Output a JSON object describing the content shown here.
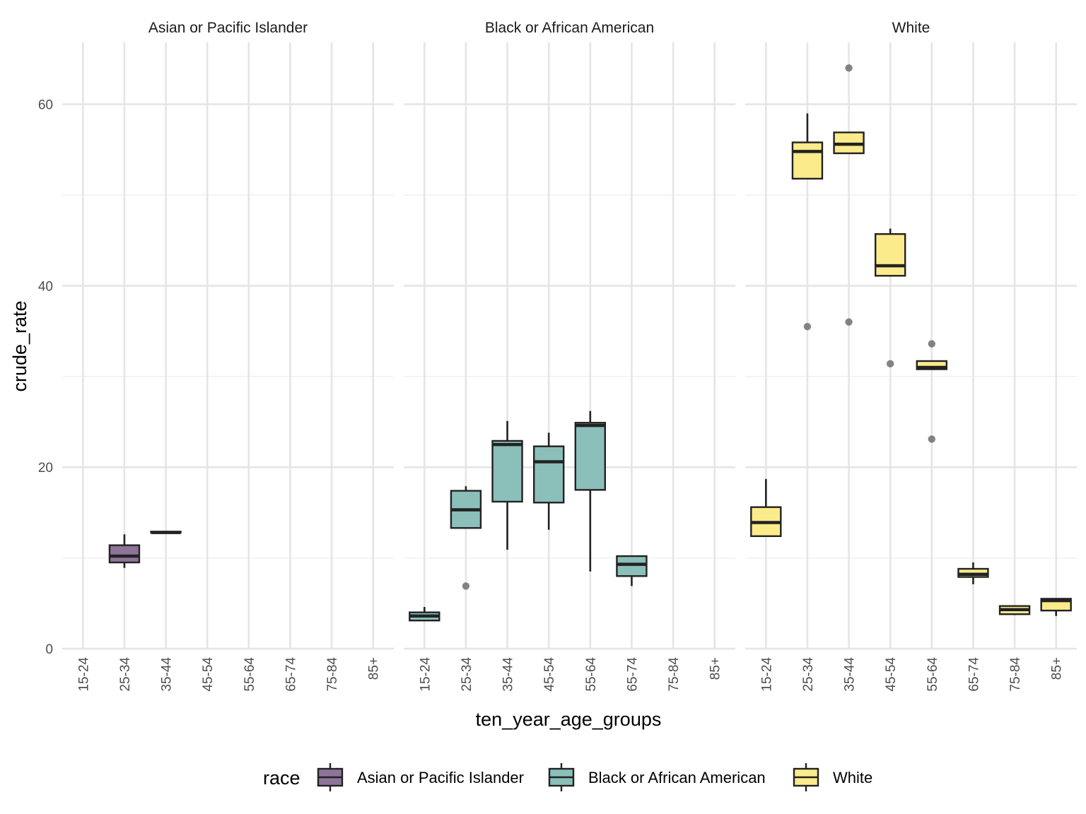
{
  "chart_data": {
    "type": "boxplot",
    "xlabel": "ten_year_age_groups",
    "ylabel": "crude_rate",
    "ylim": [
      0,
      67
    ],
    "y_ticks": [
      0,
      20,
      40,
      60
    ],
    "grid": true,
    "legend": {
      "title": "race",
      "position": "bottom",
      "entries": [
        "Asian or Pacific Islander",
        "Black or African American",
        "White"
      ]
    },
    "categories": [
      "15-24",
      "25-34",
      "35-44",
      "45-54",
      "55-64",
      "65-74",
      "75-84",
      "85+"
    ],
    "panels": [
      {
        "title": "Asian or Pacific Islander",
        "color": "#8E7498",
        "boxes": [
          {
            "category": "25-34",
            "low": 8.9,
            "q1": 9.5,
            "median": 10.2,
            "q3": 11.4,
            "high": 12.6,
            "outliers": []
          },
          {
            "category": "35-44",
            "low": 12.8,
            "q1": 12.8,
            "median": 12.8,
            "q3": 12.9,
            "high": 12.9,
            "outliers": []
          }
        ]
      },
      {
        "title": "Black or African American",
        "color": "#8BBFBA",
        "boxes": [
          {
            "category": "15-24",
            "low": 3.1,
            "q1": 3.1,
            "median": 3.6,
            "q3": 4.0,
            "high": 4.6,
            "outliers": []
          },
          {
            "category": "25-34",
            "low": 13.3,
            "q1": 13.3,
            "median": 15.3,
            "q3": 17.4,
            "high": 17.9,
            "outliers": [
              6.9
            ]
          },
          {
            "category": "35-44",
            "low": 10.9,
            "q1": 16.2,
            "median": 22.5,
            "q3": 22.9,
            "high": 25.1,
            "outliers": []
          },
          {
            "category": "45-54",
            "low": 13.1,
            "q1": 16.1,
            "median": 20.6,
            "q3": 22.3,
            "high": 23.8,
            "outliers": []
          },
          {
            "category": "55-64",
            "low": 8.5,
            "q1": 17.5,
            "median": 24.6,
            "q3": 24.9,
            "high": 26.2,
            "outliers": []
          },
          {
            "category": "65-74",
            "low": 6.9,
            "q1": 8.0,
            "median": 9.3,
            "q3": 10.2,
            "high": 10.2,
            "outliers": []
          }
        ]
      },
      {
        "title": "White",
        "color": "#FBEB8B",
        "boxes": [
          {
            "category": "15-24",
            "low": 12.4,
            "q1": 12.4,
            "median": 13.9,
            "q3": 15.6,
            "high": 18.7,
            "outliers": []
          },
          {
            "category": "25-34",
            "low": 51.8,
            "q1": 51.8,
            "median": 54.8,
            "q3": 55.8,
            "high": 59.0,
            "outliers": [
              35.5
            ]
          },
          {
            "category": "35-44",
            "low": 54.6,
            "q1": 54.6,
            "median": 55.6,
            "q3": 56.9,
            "high": 56.9,
            "outliers": [
              64.0,
              36.0
            ]
          },
          {
            "category": "45-54",
            "low": 41.1,
            "q1": 41.1,
            "median": 42.2,
            "q3": 45.7,
            "high": 46.3,
            "outliers": [
              31.4
            ]
          },
          {
            "category": "55-64",
            "low": 30.8,
            "q1": 30.8,
            "median": 31.0,
            "q3": 31.7,
            "high": 31.7,
            "outliers": [
              33.6,
              23.1
            ]
          },
          {
            "category": "65-74",
            "low": 7.1,
            "q1": 7.9,
            "median": 8.2,
            "q3": 8.8,
            "high": 9.5,
            "outliers": []
          },
          {
            "category": "75-84",
            "low": 3.7,
            "q1": 3.8,
            "median": 4.3,
            "q3": 4.7,
            "high": 4.7,
            "outliers": []
          },
          {
            "category": "85+",
            "low": 3.6,
            "q1": 4.2,
            "median": 5.3,
            "q3": 5.5,
            "high": 5.5,
            "outliers": []
          }
        ]
      }
    ]
  }
}
